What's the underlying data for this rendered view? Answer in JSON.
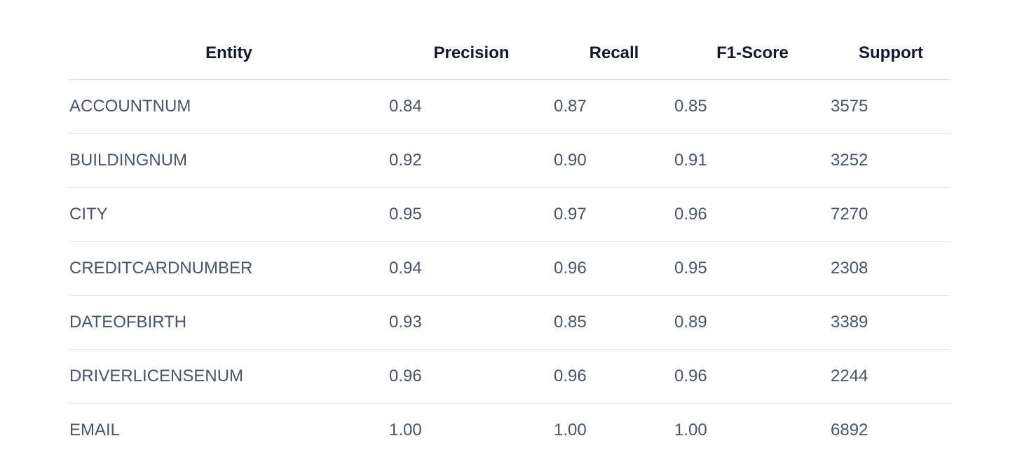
{
  "table": {
    "headers": [
      "Entity",
      "Precision",
      "Recall",
      "F1-Score",
      "Support"
    ],
    "rows": [
      {
        "entity": "ACCOUNTNUM",
        "precision": "0.84",
        "recall": "0.87",
        "f1": "0.85",
        "support": "3575"
      },
      {
        "entity": "BUILDINGNUM",
        "precision": "0.92",
        "recall": "0.90",
        "f1": "0.91",
        "support": "3252"
      },
      {
        "entity": "CITY",
        "precision": "0.95",
        "recall": "0.97",
        "f1": "0.96",
        "support": "7270"
      },
      {
        "entity": "CREDITCARDNUMBER",
        "precision": "0.94",
        "recall": "0.96",
        "f1": "0.95",
        "support": "2308"
      },
      {
        "entity": "DATEOFBIRTH",
        "precision": "0.93",
        "recall": "0.85",
        "f1": "0.89",
        "support": "3389"
      },
      {
        "entity": "DRIVERLICENSENUM",
        "precision": "0.96",
        "recall": "0.96",
        "f1": "0.96",
        "support": "2244"
      },
      {
        "entity": "EMAIL",
        "precision": "1.00",
        "recall": "1.00",
        "f1": "1.00",
        "support": "6892"
      }
    ]
  }
}
